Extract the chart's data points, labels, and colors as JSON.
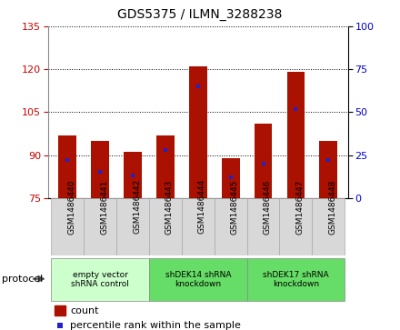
{
  "title": "GDS5375 / ILMN_3288238",
  "samples": [
    "GSM1486440",
    "GSM1486441",
    "GSM1486442",
    "GSM1486443",
    "GSM1486444",
    "GSM1486445",
    "GSM1486446",
    "GSM1486447",
    "GSM1486448"
  ],
  "count_values": [
    97,
    95,
    91,
    97,
    121,
    89,
    101,
    119,
    95
  ],
  "percentile_values": [
    22,
    15,
    13,
    28,
    65,
    12,
    20,
    52,
    22
  ],
  "ylim_left": [
    75,
    135
  ],
  "ylim_right": [
    0,
    100
  ],
  "yticks_left": [
    75,
    90,
    105,
    120,
    135
  ],
  "yticks_right": [
    0,
    25,
    50,
    75,
    100
  ],
  "bar_color": "#aa1100",
  "percentile_color": "#2222cc",
  "protocol_groups": [
    {
      "label": "empty vector\nshRNA control",
      "start": 0,
      "end": 2,
      "color": "#ccffcc"
    },
    {
      "label": "shDEK14 shRNA\nknockdown",
      "start": 3,
      "end": 5,
      "color": "#66dd66"
    },
    {
      "label": "shDEK17 shRNA\nknockdown",
      "start": 6,
      "end": 8,
      "color": "#66dd66"
    }
  ],
  "sample_box_color": "#d8d8d8",
  "sample_box_edge": "#aaaaaa",
  "legend_count_label": "count",
  "legend_pct_label": "percentile rank within the sample",
  "protocol_label": "protocol",
  "bar_width": 0.55,
  "base_value": 75
}
